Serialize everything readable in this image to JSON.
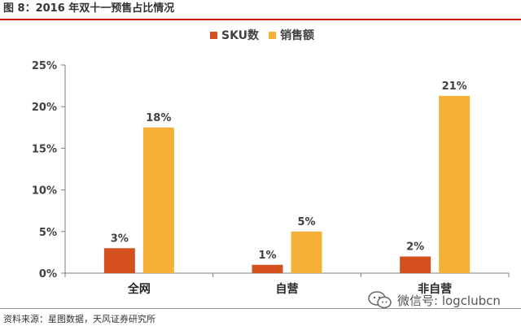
{
  "header": {
    "title": "图 8：2016 年双十一预售占比情况"
  },
  "footer": {
    "source": "资料来源：星图数据，天风证券研究所",
    "watermark": "微信号: logclubcn",
    "watermark_icon": "wechat-icon"
  },
  "colors": {
    "sku": "#d4501c",
    "sales": "#f5b135",
    "accent_rule": "#c00000"
  },
  "chart_data": {
    "type": "bar",
    "title": "",
    "xlabel": "",
    "ylabel": "",
    "categories": [
      "全网",
      "自营",
      "非自营"
    ],
    "series": [
      {
        "name": "SKU数",
        "values": [
          3,
          1,
          2
        ],
        "labels": [
          "3%",
          "1%",
          "2%"
        ],
        "color": "#d4501c"
      },
      {
        "name": "销售额",
        "values": [
          17.5,
          5,
          21.3
        ],
        "labels": [
          "18%",
          "5%",
          "21%"
        ],
        "color": "#f5b135"
      }
    ],
    "ylim": [
      0,
      25
    ],
    "yticks": [
      0,
      5,
      10,
      15,
      20,
      25
    ],
    "ytick_labels": [
      "0%",
      "5%",
      "10%",
      "15%",
      "20%",
      "25%"
    ],
    "grid": false,
    "legend": "top-center"
  }
}
